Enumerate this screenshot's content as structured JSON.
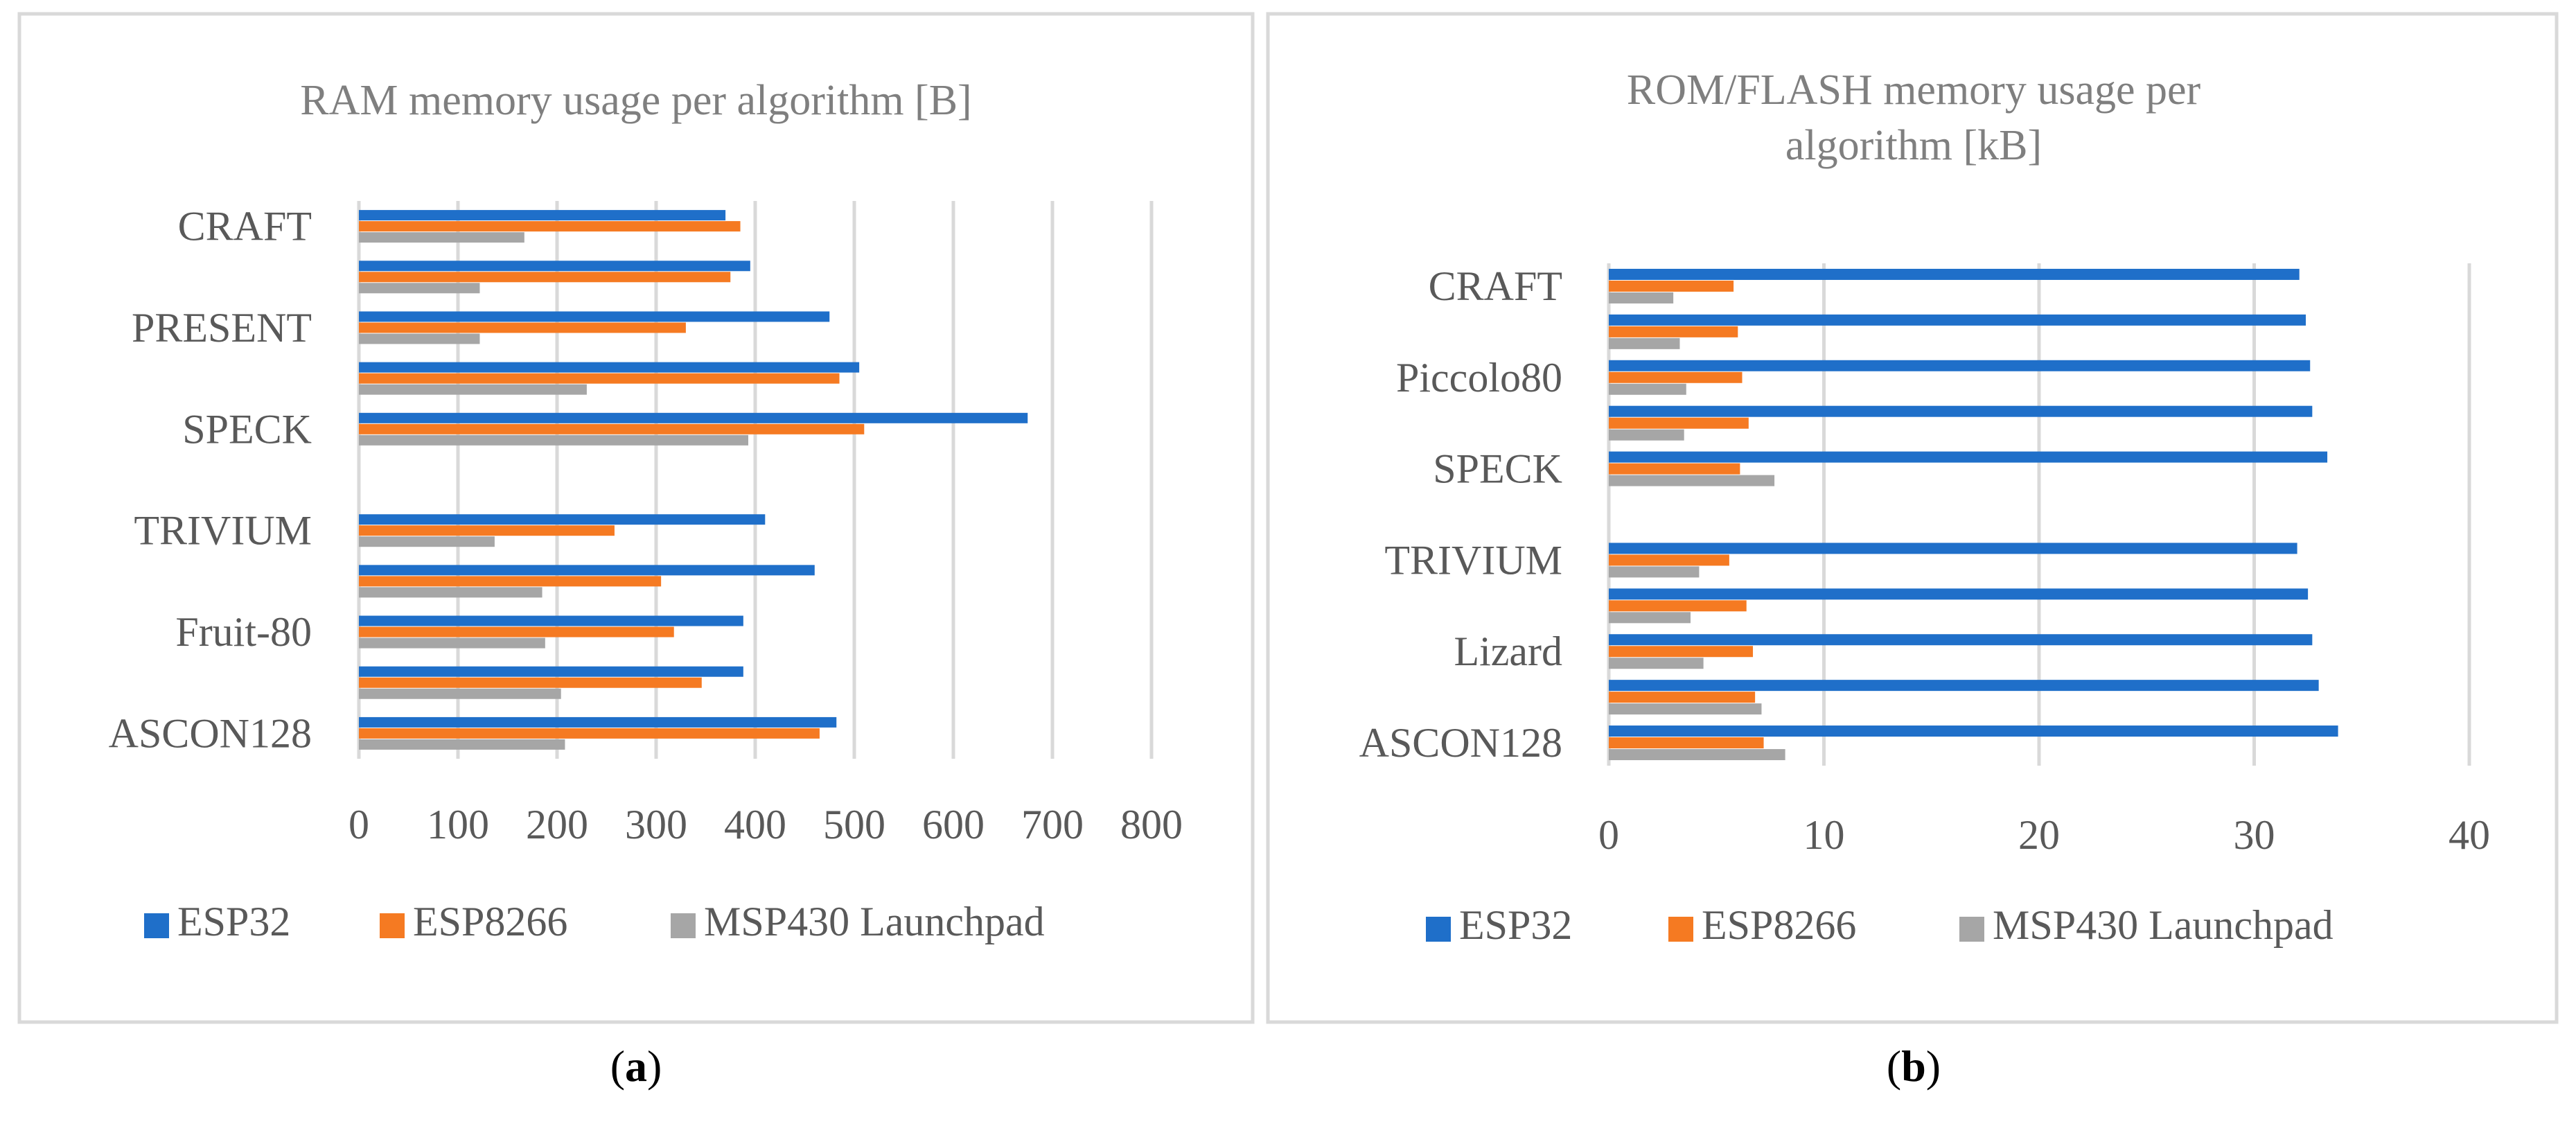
{
  "legend": [
    "ESP32",
    "ESP8266",
    "MSP430 Launchpad"
  ],
  "colors": {
    "esp32": "#1f6fc9",
    "esp8266": "#f57a22",
    "msp430": "#a6a6a6",
    "grid": "#d9d9d9",
    "frame": "#d9d9d9"
  },
  "chart_data": [
    {
      "type": "bar",
      "orientation": "horizontal",
      "title": "RAM memory usage per algorithm [B]",
      "panel_label": "a",
      "categories": [
        "CRAFT",
        "",
        "PRESENT",
        "",
        "SPECK",
        "",
        "TRIVIUM",
        "",
        "Fruit-80",
        "",
        "ASCON128"
      ],
      "series": [
        {
          "name": "ESP32",
          "values": [
            370,
            395,
            475,
            505,
            675,
            0,
            410,
            460,
            388,
            388,
            482
          ]
        },
        {
          "name": "ESP8266",
          "values": [
            385,
            375,
            330,
            485,
            510,
            0,
            258,
            305,
            318,
            346,
            465
          ]
        },
        {
          "name": "MSP430 Launchpad",
          "values": [
            167,
            122,
            122,
            230,
            393,
            0,
            137,
            185,
            188,
            204,
            208
          ]
        }
      ],
      "xlim": [
        0,
        800
      ],
      "xticks": [
        0,
        100,
        200,
        300,
        400,
        500,
        600,
        700,
        800
      ],
      "grid": true,
      "legend_position": "bottom"
    },
    {
      "type": "bar",
      "orientation": "horizontal",
      "title": "ROM/FLASH memory usage per algorithm [kB]",
      "title_lines": [
        "ROM/FLASH memory usage per",
        "algorithm [kB]"
      ],
      "panel_label": "b",
      "categories": [
        "CRAFT",
        "",
        "Piccolo80",
        "",
        "SPECK",
        "",
        "TRIVIUM",
        "",
        "Lizard",
        "",
        "ASCON128"
      ],
      "series": [
        {
          "name": "ESP32",
          "values": [
            32.1,
            32.4,
            32.6,
            32.7,
            33.4,
            0,
            32.0,
            32.5,
            32.7,
            33.0,
            33.9
          ]
        },
        {
          "name": "ESP8266",
          "values": [
            5.8,
            6.0,
            6.2,
            6.5,
            6.1,
            0,
            5.6,
            6.4,
            6.7,
            6.8,
            7.2
          ]
        },
        {
          "name": "MSP430 Launchpad",
          "values": [
            3.0,
            3.3,
            3.6,
            3.5,
            7.7,
            0,
            4.2,
            3.8,
            4.4,
            7.1,
            8.2
          ]
        }
      ],
      "xlim": [
        0,
        40
      ],
      "xticks": [
        0,
        10,
        20,
        30,
        40
      ],
      "grid": true,
      "legend_position": "bottom"
    }
  ]
}
